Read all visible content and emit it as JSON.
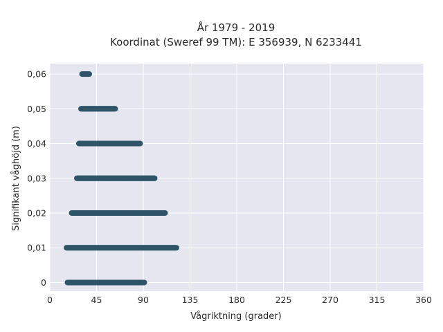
{
  "chart_data": {
    "type": "scatter",
    "title_line1": "År 1979 - 2019",
    "title_line2": "Koordinat (Sweref 99 TM): E 356939, N 6233441",
    "xlabel": "Vågriktning (grader)",
    "ylabel": "Signifikant våghöjd (m)",
    "xlim": [
      0,
      360
    ],
    "ylim": [
      -0.0025,
      0.063
    ],
    "x_ticks": [
      {
        "value": 0,
        "label": "0"
      },
      {
        "value": 45,
        "label": "45"
      },
      {
        "value": 90,
        "label": "90"
      },
      {
        "value": 135,
        "label": "135"
      },
      {
        "value": 180,
        "label": "180"
      },
      {
        "value": 225,
        "label": "225"
      },
      {
        "value": 270,
        "label": "270"
      },
      {
        "value": 315,
        "label": "315"
      },
      {
        "value": 360,
        "label": "360"
      }
    ],
    "y_ticks": [
      {
        "value": 0,
        "label": "0"
      },
      {
        "value": 0.01,
        "label": "0,01"
      },
      {
        "value": 0.02,
        "label": "0,02"
      },
      {
        "value": 0.03,
        "label": "0,03"
      },
      {
        "value": 0.04,
        "label": "0,04"
      },
      {
        "value": 0.05,
        "label": "0,05"
      },
      {
        "value": 0.06,
        "label": "0,06"
      }
    ],
    "grid": true,
    "background_color": "#e5e6ef",
    "grid_color": "#ffffff",
    "marker_color": "#2f5469",
    "bands": [
      {
        "y": 0.0,
        "x_min": 17,
        "x_max": 91
      },
      {
        "y": 0.01,
        "x_min": 16,
        "x_max": 122
      },
      {
        "y": 0.02,
        "x_min": 21,
        "x_max": 111
      },
      {
        "y": 0.03,
        "x_min": 26,
        "x_max": 101
      },
      {
        "y": 0.04,
        "x_min": 28,
        "x_max": 87
      },
      {
        "y": 0.05,
        "x_min": 30,
        "x_max": 63
      },
      {
        "y": 0.06,
        "x_min": 31,
        "x_max": 38
      }
    ]
  }
}
